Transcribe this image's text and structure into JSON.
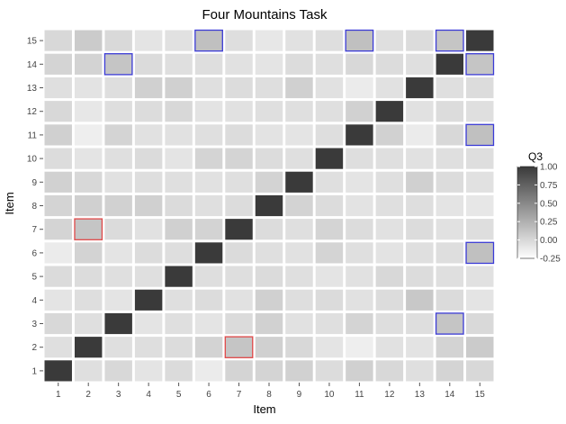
{
  "chart_data": {
    "type": "heatmap",
    "title": "Four Mountains Task",
    "xlabel": "Item",
    "ylabel": "Item",
    "x_categories": [
      "1",
      "2",
      "3",
      "4",
      "5",
      "6",
      "7",
      "8",
      "9",
      "10",
      "11",
      "12",
      "13",
      "14",
      "15"
    ],
    "y_categories": [
      "1",
      "2",
      "3",
      "4",
      "5",
      "6",
      "7",
      "8",
      "9",
      "10",
      "11",
      "12",
      "13",
      "14",
      "15"
    ],
    "value_range": [
      -0.25,
      1.0
    ],
    "legend": {
      "title": "Q3",
      "position": "right",
      "ticks": [
        "1.00",
        "0.75",
        "0.50",
        "0.25",
        "0.00",
        "-0.25"
      ],
      "tick_values": [
        1.0,
        0.75,
        0.5,
        0.25,
        0.0,
        -0.25
      ]
    },
    "rows": [
      [
        1.0,
        -0.05,
        0.0,
        -0.08,
        -0.02,
        -0.12,
        0.02,
        0.02,
        0.04,
        -0.03,
        0.05,
        0.0,
        -0.05,
        0.02,
        0.0
      ],
      [
        -0.05,
        1.0,
        -0.05,
        -0.04,
        -0.03,
        0.03,
        0.12,
        0.05,
        0.0,
        -0.08,
        -0.14,
        -0.06,
        -0.07,
        0.03,
        0.08
      ],
      [
        0.0,
        -0.05,
        1.0,
        -0.08,
        -0.05,
        -0.08,
        -0.02,
        0.04,
        -0.06,
        -0.05,
        0.02,
        -0.04,
        -0.04,
        0.12,
        -0.01
      ],
      [
        -0.08,
        -0.04,
        -0.08,
        1.0,
        -0.05,
        -0.03,
        -0.06,
        0.05,
        -0.04,
        -0.02,
        -0.06,
        -0.03,
        0.1,
        -0.02,
        -0.08
      ],
      [
        -0.02,
        -0.03,
        -0.05,
        -0.05,
        1.0,
        -0.04,
        -0.04,
        -0.02,
        -0.05,
        -0.08,
        -0.06,
        0.0,
        -0.03,
        -0.05,
        -0.06
      ],
      [
        -0.12,
        0.03,
        -0.08,
        -0.03,
        -0.04,
        1.0,
        -0.02,
        -0.05,
        -0.06,
        0.02,
        -0.05,
        -0.07,
        -0.05,
        -0.04,
        0.15
      ],
      [
        0.02,
        0.12,
        -0.02,
        -0.06,
        0.05,
        0.03,
        1.0,
        -0.03,
        -0.05,
        0.02,
        -0.03,
        -0.06,
        -0.03,
        -0.06,
        -0.04
      ],
      [
        0.02,
        0.05,
        0.04,
        0.05,
        -0.02,
        -0.05,
        -0.03,
        1.0,
        0.03,
        -0.03,
        -0.07,
        -0.05,
        -0.04,
        -0.08,
        -0.1
      ],
      [
        0.04,
        0.0,
        -0.06,
        -0.04,
        -0.05,
        -0.06,
        -0.05,
        0.03,
        1.0,
        -0.05,
        -0.08,
        -0.05,
        0.05,
        -0.03,
        -0.06
      ],
      [
        -0.03,
        -0.08,
        -0.05,
        -0.02,
        -0.08,
        0.02,
        0.02,
        -0.03,
        -0.05,
        1.0,
        -0.04,
        -0.05,
        -0.06,
        -0.05,
        -0.04
      ],
      [
        0.05,
        -0.14,
        0.02,
        -0.06,
        -0.06,
        -0.05,
        -0.03,
        -0.07,
        -0.08,
        -0.04,
        1.0,
        0.04,
        -0.12,
        0.0,
        0.15
      ],
      [
        0.0,
        -0.1,
        -0.04,
        -0.03,
        0.0,
        -0.07,
        -0.06,
        -0.05,
        -0.05,
        -0.05,
        0.04,
        1.0,
        -0.06,
        -0.03,
        -0.05
      ],
      [
        -0.05,
        -0.07,
        -0.04,
        0.05,
        0.05,
        -0.05,
        -0.03,
        -0.04,
        0.05,
        -0.06,
        -0.12,
        -0.06,
        1.0,
        -0.05,
        -0.03
      ],
      [
        0.02,
        0.03,
        0.12,
        -0.02,
        -0.05,
        -0.04,
        -0.06,
        -0.08,
        -0.03,
        -0.05,
        0.0,
        -0.03,
        -0.05,
        1.0,
        0.12
      ],
      [
        0.0,
        0.08,
        -0.01,
        -0.08,
        -0.06,
        0.15,
        -0.04,
        -0.1,
        -0.06,
        -0.04,
        0.15,
        -0.05,
        -0.03,
        0.12,
        1.0
      ]
    ],
    "highlighted_cells": [
      {
        "x": 6,
        "y": 15,
        "color": "#3b3bd6"
      },
      {
        "x": 11,
        "y": 15,
        "color": "#3b3bd6"
      },
      {
        "x": 14,
        "y": 15,
        "color": "#3b3bd6"
      },
      {
        "x": 3,
        "y": 14,
        "color": "#3b3bd6"
      },
      {
        "x": 15,
        "y": 14,
        "color": "#3b3bd6"
      },
      {
        "x": 15,
        "y": 11,
        "color": "#3b3bd6"
      },
      {
        "x": 2,
        "y": 7,
        "color": "#e04848"
      },
      {
        "x": 15,
        "y": 6,
        "color": "#3b3bd6"
      },
      {
        "x": 14,
        "y": 3,
        "color": "#3b3bd6"
      },
      {
        "x": 7,
        "y": 2,
        "color": "#e04848"
      }
    ],
    "grid": false,
    "colors": {
      "low": "#ffffff",
      "high": "#3a3a3a",
      "panel": "#ffffff"
    }
  }
}
